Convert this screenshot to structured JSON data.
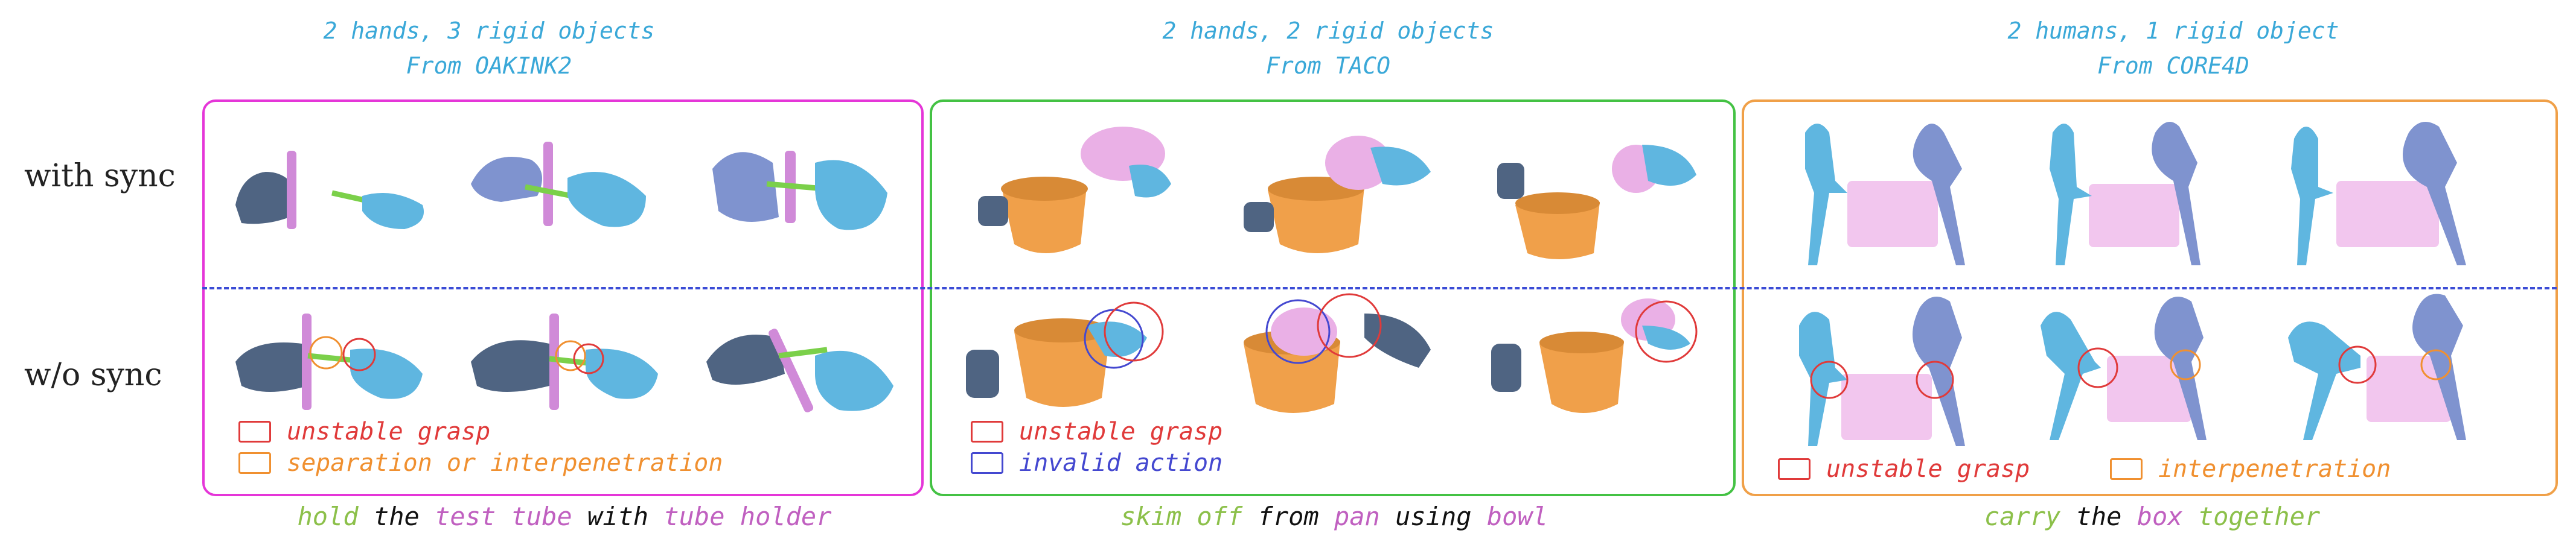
{
  "figure": {
    "row_labels": {
      "top": "with sync",
      "bottom": "w/o sync"
    },
    "panels": [
      {
        "title_line1": "2 hands, 3 rigid objects",
        "title_line2": "From OAKINK2",
        "border_color": "#e536d8",
        "legend": [
          {
            "label": "unstable grasp",
            "color": "#e03a3a"
          },
          {
            "label": "separation or interpenetration",
            "color": "#f09030"
          }
        ],
        "caption": [
          {
            "text": "hold",
            "color": "#8cc04a"
          },
          {
            "text": " the ",
            "color": "#111111"
          },
          {
            "text": "test tube",
            "color": "#c060c0"
          },
          {
            "text": " with ",
            "color": "#111111"
          },
          {
            "text": "tube holder",
            "color": "#c060c0"
          }
        ]
      },
      {
        "title_line1": "2 hands, 2 rigid objects",
        "title_line2": "From TACO",
        "border_color": "#44c244",
        "legend": [
          {
            "label": "unstable grasp",
            "color": "#e03a3a"
          },
          {
            "label": "invalid action",
            "color": "#4448d0"
          }
        ],
        "caption": [
          {
            "text": "skim off",
            "color": "#8cc04a"
          },
          {
            "text": " from ",
            "color": "#111111"
          },
          {
            "text": "pan",
            "color": "#c060c0"
          },
          {
            "text": " using ",
            "color": "#111111"
          },
          {
            "text": "bowl",
            "color": "#c060c0"
          }
        ]
      },
      {
        "title_line1": "2 humans, 1 rigid object",
        "title_line2": "From CORE4D",
        "border_color": "#f0a048",
        "legend": [
          {
            "label": "unstable grasp",
            "color": "#e03a3a"
          },
          {
            "label": "interpenetration",
            "color": "#f09030"
          }
        ],
        "caption": [
          {
            "text": "carry",
            "color": "#8cc04a"
          },
          {
            "text": " the ",
            "color": "#111111"
          },
          {
            "text": "box",
            "color": "#c060c0"
          },
          {
            "text": " together",
            "color": "#8cc04a"
          }
        ]
      }
    ]
  }
}
